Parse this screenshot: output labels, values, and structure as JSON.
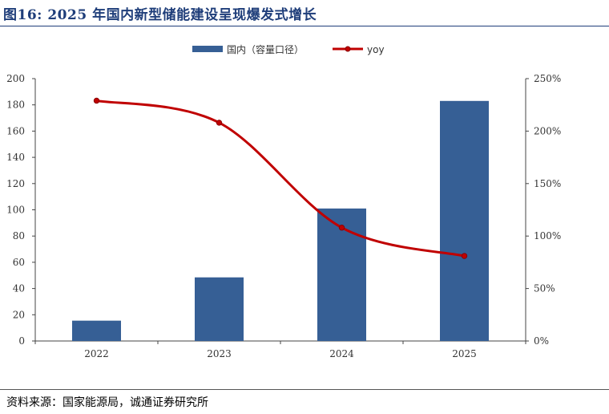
{
  "header": {
    "title": "图16:   2025 年国内新型储能建设呈现爆发式增长"
  },
  "footer": {
    "source": "资料来源：国家能源局，诚通证券研究所"
  },
  "colors": {
    "bar": "#365f95",
    "line": "#c00000",
    "title": "#1f3e7a"
  },
  "chart_data": {
    "type": "bar",
    "categories": [
      "2022",
      "2023",
      "2024",
      "2025"
    ],
    "series": [
      {
        "name": "国内（容量口径）",
        "type": "bar",
        "axis": "left",
        "values": [
          15.5,
          48.5,
          101,
          183
        ]
      },
      {
        "name": "yoy",
        "type": "line",
        "axis": "right",
        "values": [
          229,
          208,
          108,
          81
        ]
      }
    ],
    "ylim": [
      0,
      200
    ],
    "y_ticks": [
      "0",
      "20",
      "40",
      "60",
      "80",
      "100",
      "120",
      "140",
      "160",
      "180",
      "200"
    ],
    "y2lim": [
      0,
      250
    ],
    "y2_ticks": [
      "0%",
      "50%",
      "100%",
      "150%",
      "200%",
      "250%"
    ],
    "legend": "top-center",
    "grid": false
  }
}
